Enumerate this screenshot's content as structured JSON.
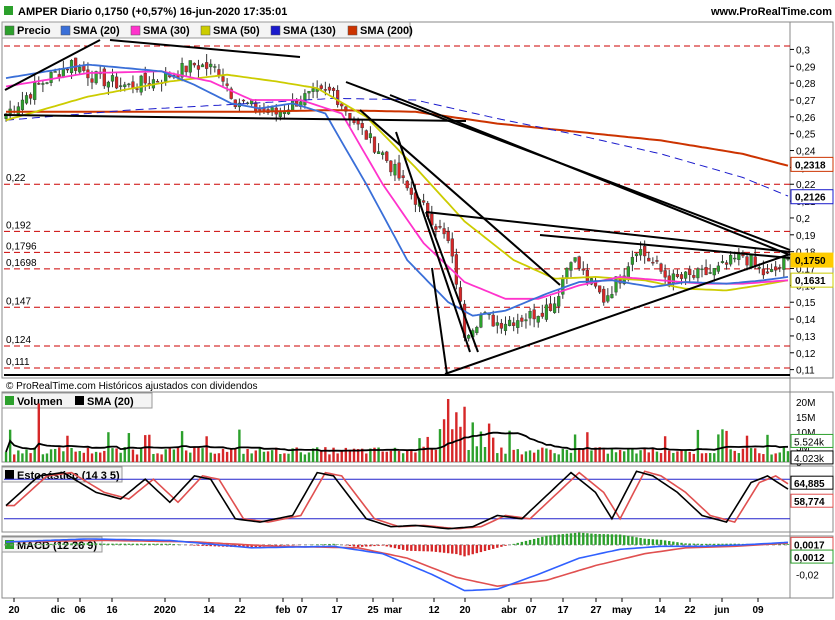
{
  "header": {
    "title": "AMPER Diario 0,1750 (+0,57%) 16-jun-2020 17:35:01",
    "site": "www.ProRealTime.com",
    "copyright": "© ProRealTime.com  Históricos ajustados con dividendos"
  },
  "colors": {
    "candle_up": "#2ca02c",
    "candle_down": "#d62728",
    "sma20": "#3a6fd8",
    "sma30": "#ff33cc",
    "sma50": "#cccc00",
    "sma130": "#1a1acc",
    "sma200": "#cc3300",
    "stoch_k": "#000000",
    "stoch_d": "#e05050",
    "macd_line": "#3060ff",
    "macd_signal": "#e05050",
    "hist_pos": "#2ca02c",
    "hist_neg": "#d62728",
    "dashed_red": "#cc0000"
  },
  "chart_data": {
    "type": "candlestick",
    "title": "AMPER Diario 0,1750 (+0,57%) 16-jun-2020 17:35:01",
    "legend": [
      {
        "name": "Precio",
        "color": "#2ca02c"
      },
      {
        "name": "SMA (20)",
        "color": "#3a6fd8"
      },
      {
        "name": "SMA (30)",
        "color": "#ff33cc"
      },
      {
        "name": "SMA (50)",
        "color": "#cccc00"
      },
      {
        "name": "SMA (130)",
        "color": "#1a1acc"
      },
      {
        "name": "SMA (200)",
        "color": "#cc3300"
      }
    ],
    "price_ticks": [
      "0,3",
      "0,29",
      "0,28",
      "0,27",
      "0,26",
      "0,25",
      "0,24",
      "0,23",
      "0,22",
      "0,21",
      "0,2",
      "0,19",
      "0,18",
      "0,17",
      "0,16",
      "0,15",
      "0,14",
      "0,13",
      "0,12",
      "0,11"
    ],
    "ylim": [
      0.11,
      0.305
    ],
    "horizontal_levels": [
      {
        "label": "0,22",
        "value": 0.22
      },
      {
        "label": "0,192",
        "value": 0.192
      },
      {
        "label": "0,1796",
        "value": 0.1796
      },
      {
        "label": "0,1698",
        "value": 0.1698
      },
      {
        "label": "0,147",
        "value": 0.147
      },
      {
        "label": "0,124",
        "value": 0.124
      },
      {
        "label": "0,111",
        "value": 0.111
      }
    ],
    "value_tags": [
      {
        "label": "0,2318",
        "value": 0.2318,
        "color": "#cc3300"
      },
      {
        "label": "0,2126",
        "value": 0.2126,
        "color": "#1a1acc"
      },
      {
        "label": "0,1750",
        "value": 0.175,
        "color": "#ffcc00"
      },
      {
        "label": "0,1631",
        "value": 0.1631,
        "color": "#cccc00"
      }
    ],
    "x_labels": [
      "20",
      "dic",
      "06",
      "16",
      "2020",
      "14",
      "22",
      "feb",
      "07",
      "17",
      "25",
      "mar",
      "12",
      "20",
      "abr",
      "07",
      "17",
      "27",
      "may",
      "14",
      "22",
      "jun",
      "09"
    ],
    "sma_waypoints": {
      "sma20": [
        [
          0,
          0.283
        ],
        [
          20,
          0.291
        ],
        [
          38,
          0.287
        ],
        [
          46,
          0.279
        ],
        [
          55,
          0.268
        ],
        [
          62,
          0.265
        ],
        [
          70,
          0.268
        ],
        [
          78,
          0.262
        ],
        [
          88,
          0.22
        ],
        [
          98,
          0.175
        ],
        [
          108,
          0.15
        ],
        [
          114,
          0.142
        ],
        [
          122,
          0.145
        ],
        [
          132,
          0.155
        ],
        [
          140,
          0.162
        ],
        [
          148,
          0.163
        ],
        [
          158,
          0.159
        ],
        [
          166,
          0.162
        ],
        [
          176,
          0.161
        ],
        [
          185,
          0.163
        ],
        [
          191,
          0.165
        ]
      ],
      "sma30": [
        [
          0,
          0.278
        ],
        [
          20,
          0.286
        ],
        [
          38,
          0.287
        ],
        [
          50,
          0.281
        ],
        [
          60,
          0.27
        ],
        [
          72,
          0.27
        ],
        [
          82,
          0.262
        ],
        [
          92,
          0.22
        ],
        [
          102,
          0.185
        ],
        [
          112,
          0.162
        ],
        [
          122,
          0.152
        ],
        [
          130,
          0.152
        ],
        [
          140,
          0.16
        ],
        [
          150,
          0.165
        ],
        [
          160,
          0.163
        ],
        [
          170,
          0.161
        ],
        [
          180,
          0.161
        ],
        [
          191,
          0.163
        ]
      ],
      "sma50": [
        [
          0,
          0.258
        ],
        [
          20,
          0.272
        ],
        [
          40,
          0.281
        ],
        [
          54,
          0.285
        ],
        [
          66,
          0.281
        ],
        [
          76,
          0.277
        ],
        [
          88,
          0.26
        ],
        [
          100,
          0.23
        ],
        [
          112,
          0.198
        ],
        [
          124,
          0.175
        ],
        [
          134,
          0.164
        ],
        [
          144,
          0.165
        ],
        [
          156,
          0.163
        ],
        [
          166,
          0.158
        ],
        [
          176,
          0.157
        ],
        [
          184,
          0.16
        ],
        [
          191,
          0.163
        ]
      ],
      "sma130": [
        [
          0,
          0.258
        ],
        [
          30,
          0.264
        ],
        [
          60,
          0.268
        ],
        [
          80,
          0.271
        ],
        [
          100,
          0.27
        ],
        [
          120,
          0.259
        ],
        [
          140,
          0.249
        ],
        [
          160,
          0.238
        ],
        [
          180,
          0.224
        ],
        [
          191,
          0.213
        ]
      ],
      "sma200": [
        [
          0,
          0.263
        ],
        [
          30,
          0.263
        ],
        [
          60,
          0.263
        ],
        [
          80,
          0.264
        ],
        [
          100,
          0.263
        ],
        [
          120,
          0.256
        ],
        [
          140,
          0.251
        ],
        [
          160,
          0.246
        ],
        [
          180,
          0.238
        ],
        [
          191,
          0.231
        ]
      ]
    },
    "close_waypoints": [
      [
        0,
        0.262
      ],
      [
        8,
        0.279
      ],
      [
        16,
        0.292
      ],
      [
        22,
        0.283
      ],
      [
        30,
        0.278
      ],
      [
        38,
        0.283
      ],
      [
        46,
        0.291
      ],
      [
        52,
        0.288
      ],
      [
        56,
        0.27
      ],
      [
        62,
        0.264
      ],
      [
        66,
        0.262
      ],
      [
        72,
        0.271
      ],
      [
        80,
        0.275
      ],
      [
        86,
        0.254
      ],
      [
        92,
        0.238
      ],
      [
        98,
        0.217
      ],
      [
        104,
        0.2
      ],
      [
        108,
        0.185
      ],
      [
        110,
        0.163
      ],
      [
        112,
        0.132
      ],
      [
        116,
        0.142
      ],
      [
        120,
        0.138
      ],
      [
        128,
        0.142
      ],
      [
        134,
        0.15
      ],
      [
        138,
        0.178
      ],
      [
        142,
        0.163
      ],
      [
        146,
        0.152
      ],
      [
        150,
        0.165
      ],
      [
        154,
        0.183
      ],
      [
        158,
        0.173
      ],
      [
        162,
        0.163
      ],
      [
        168,
        0.165
      ],
      [
        174,
        0.169
      ],
      [
        180,
        0.178
      ],
      [
        186,
        0.165
      ],
      [
        191,
        0.175
      ]
    ],
    "volume": {
      "title": "Volumen",
      "sma_name": "SMA (20)",
      "ticks": [
        "20M",
        "15M",
        "10M",
        "5M",
        "0"
      ],
      "ylim": [
        0,
        22000000
      ],
      "tags": [
        {
          "label": "5.524k",
          "value": 5524000
        },
        {
          "label": "4.023k",
          "value": 4023000
        }
      ]
    },
    "stochastic": {
      "title": "Estocástico (14 3 5)",
      "tags": [
        {
          "label": "64,885",
          "value": 64.885
        },
        {
          "label": "58,774",
          "value": 58.774
        }
      ],
      "ylim": [
        0,
        100
      ]
    },
    "macd": {
      "title": "MACD (12 26 9)",
      "ticks": [
        "-0,02"
      ],
      "tags": [
        {
          "label": "0,0017",
          "value": 0.0017
        },
        {
          "label": "0,0012",
          "value": 0.0012
        }
      ],
      "ylim": [
        -0.036,
        0.006
      ]
    }
  }
}
